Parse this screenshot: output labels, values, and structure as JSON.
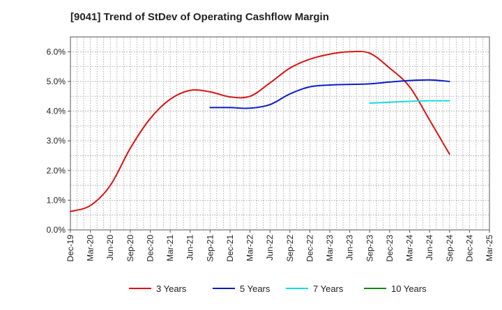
{
  "chart_data": {
    "type": "line",
    "title": "[9041]  Trend of StDev of Operating Cashflow Margin",
    "xlabel": "",
    "ylabel": "",
    "categories": [
      "Dec-19",
      "Mar-20",
      "Jun-20",
      "Sep-20",
      "Dec-20",
      "Mar-21",
      "Jun-21",
      "Sep-21",
      "Dec-21",
      "Mar-22",
      "Jun-22",
      "Sep-22",
      "Dec-22",
      "Mar-23",
      "Jun-23",
      "Sep-23",
      "Dec-23",
      "Mar-24",
      "Jun-24",
      "Sep-24",
      "Dec-24",
      "Mar-25"
    ],
    "y_ticks": [
      "0.0%",
      "1.0%",
      "2.0%",
      "3.0%",
      "4.0%",
      "5.0%",
      "6.0%"
    ],
    "ylim": [
      0,
      6.5
    ],
    "grid": true,
    "legend_position": "bottom",
    "series": [
      {
        "name": "3 Years",
        "color": "#dd1111",
        "values": [
          0.62,
          0.82,
          1.5,
          2.75,
          3.75,
          4.4,
          4.7,
          4.65,
          4.48,
          4.5,
          4.95,
          5.45,
          5.75,
          5.92,
          6.0,
          5.95,
          5.45,
          4.82,
          3.7,
          2.55,
          null,
          null
        ]
      },
      {
        "name": "5 Years",
        "color": "#0a1ccc",
        "values": [
          null,
          null,
          null,
          null,
          null,
          null,
          null,
          4.12,
          4.12,
          4.1,
          4.22,
          4.58,
          4.82,
          4.88,
          4.9,
          4.92,
          4.98,
          5.03,
          5.05,
          5.0,
          null,
          null
        ]
      },
      {
        "name": "7 Years",
        "color": "#11dddd",
        "values": [
          null,
          null,
          null,
          null,
          null,
          null,
          null,
          null,
          null,
          null,
          null,
          null,
          null,
          null,
          null,
          4.27,
          4.3,
          4.33,
          4.35,
          4.35,
          null,
          null
        ]
      },
      {
        "name": "10 Years",
        "color": "#118811",
        "values": [
          null,
          null,
          null,
          null,
          null,
          null,
          null,
          null,
          null,
          null,
          null,
          null,
          null,
          null,
          null,
          null,
          null,
          null,
          null,
          null,
          null,
          null
        ]
      }
    ]
  }
}
